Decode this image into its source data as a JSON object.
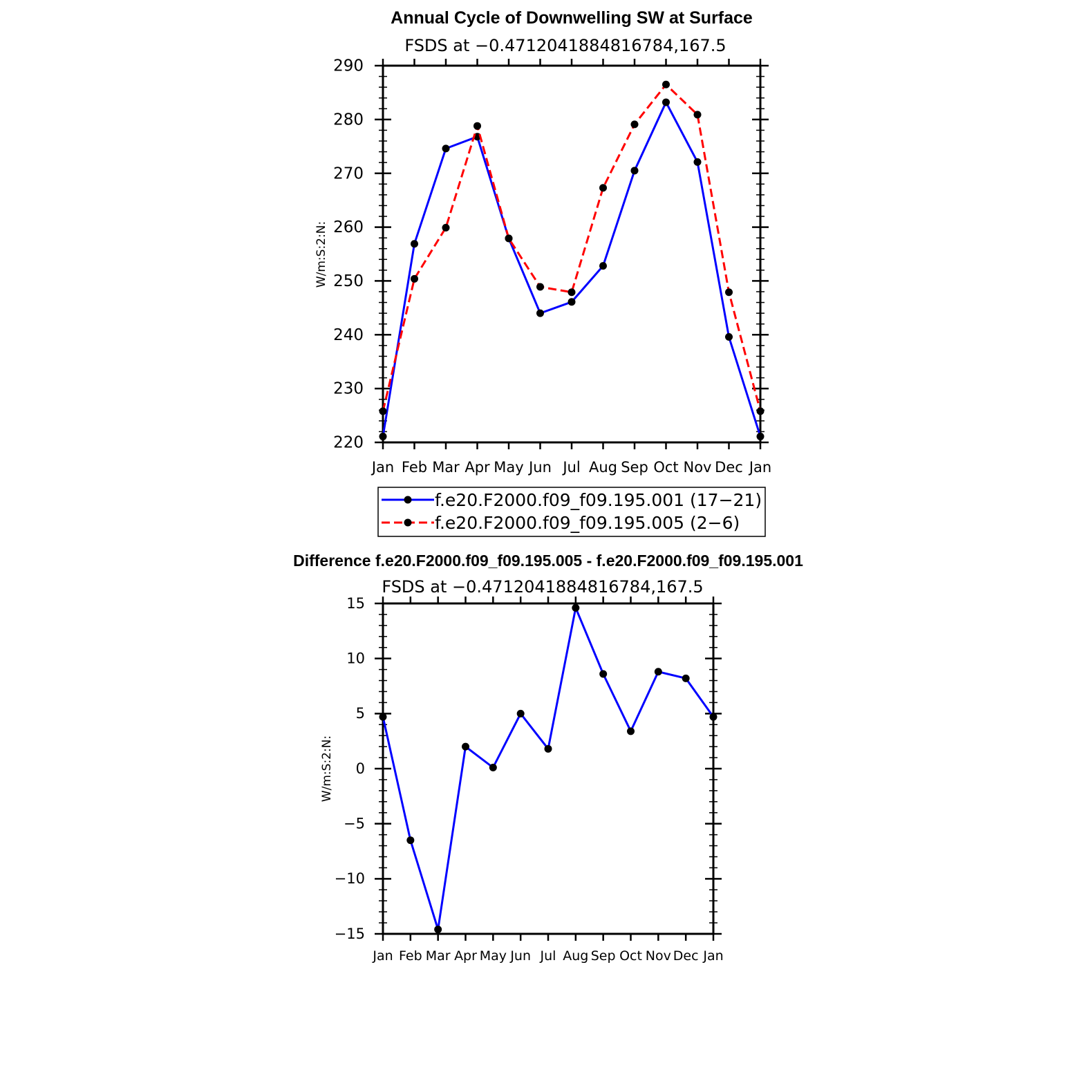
{
  "chart_data": [
    {
      "type": "line",
      "title": "Annual Cycle of Downwelling SW at Surface",
      "subtitle": "FSDS at −0.4712041884816784,167.5",
      "ylabel": "W/m:S:2:N:",
      "xlabel": "",
      "categories": [
        "Jan",
        "Feb",
        "Mar",
        "Apr",
        "May",
        "Jun",
        "Jul",
        "Aug",
        "Sep",
        "Oct",
        "Nov",
        "Dec",
        "Jan"
      ],
      "ylim": [
        220,
        290
      ],
      "yticks": [
        "220",
        "230",
        "240",
        "250",
        "260",
        "270",
        "280",
        "290"
      ],
      "legend": "bottom",
      "series": [
        {
          "name": "f.e20.F2000.f09_f09.195.001 (17−21)",
          "color": "#0000ff",
          "dash": "solid",
          "values": [
            221.1,
            256.9,
            274.6,
            276.8,
            257.9,
            244.0,
            246.1,
            252.8,
            270.5,
            283.2,
            272.1,
            239.6,
            221.1
          ]
        },
        {
          "name": "f.e20.F2000.f09_f09.195.005 (2−6)",
          "color": "#ff0000",
          "dash": "dashed",
          "values": [
            225.8,
            250.4,
            259.9,
            278.8,
            257.9,
            248.9,
            247.9,
            267.3,
            279.1,
            286.5,
            280.9,
            247.9,
            225.8
          ]
        }
      ]
    },
    {
      "type": "line",
      "title": "Difference f.e20.F2000.f09_f09.195.005 - f.e20.F2000.f09_f09.195.001",
      "subtitle": "FSDS at −0.4712041884816784,167.5",
      "ylabel": "W/m:S:2:N:",
      "xlabel": "",
      "categories": [
        "Jan",
        "Feb",
        "Mar",
        "Apr",
        "May",
        "Jun",
        "Jul",
        "Aug",
        "Sep",
        "Oct",
        "Nov",
        "Dec",
        "Jan"
      ],
      "ylim": [
        -15,
        15
      ],
      "yticks": [
        "−15",
        "−10",
        "−5",
        "0",
        "5",
        "10",
        "15"
      ],
      "series": [
        {
          "color": "#0000ff",
          "dash": "solid",
          "values": [
            4.7,
            -6.5,
            -14.6,
            2.0,
            0.1,
            5.0,
            1.8,
            14.6,
            8.6,
            3.4,
            8.8,
            8.2,
            4.7
          ]
        }
      ]
    }
  ]
}
